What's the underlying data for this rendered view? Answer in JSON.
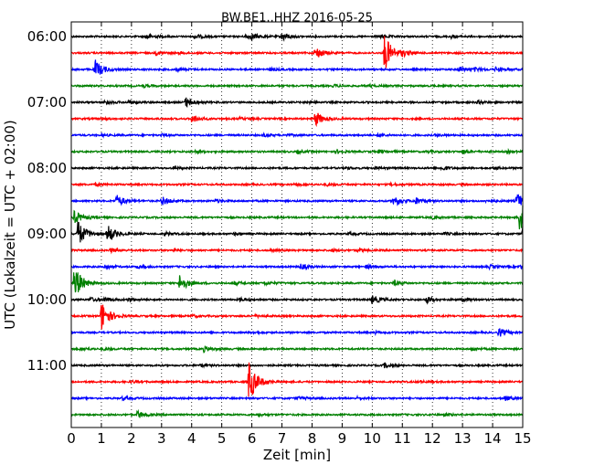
{
  "chart_data": {
    "type": "line",
    "title": "BW.BE1..HHZ 2016-05-25",
    "xlabel": "Zeit  [min]",
    "ylabel": "UTC (Lokalzeit = UTC + 02:00)",
    "xlim": [
      0,
      15
    ],
    "x_ticks": [
      "0",
      "1",
      "2",
      "3",
      "4",
      "5",
      "6",
      "7",
      "8",
      "9",
      "10",
      "11",
      "12",
      "13",
      "14",
      "15"
    ],
    "y_ticks": [
      "06:00",
      "07:00",
      "08:00",
      "09:00",
      "10:00",
      "11:00"
    ],
    "grid": "vertical dotted",
    "trace_colors": [
      "#000000",
      "#ff0000",
      "#0000ff",
      "#008000"
    ],
    "traces": [
      {
        "start": "06:00",
        "color": "#000000",
        "events": [
          [
            2.5,
            0.5
          ],
          [
            4.1,
            0.4
          ],
          [
            5.8,
            0.4
          ],
          [
            6.0,
            0.4
          ],
          [
            7.0,
            0.8
          ],
          [
            10.3,
            0.3
          ],
          [
            12.6,
            0.3
          ]
        ]
      },
      {
        "start": "06:15",
        "color": "#ff0000",
        "events": [
          [
            2.8,
            0.3
          ],
          [
            8.1,
            1.2
          ],
          [
            10.4,
            3.6
          ],
          [
            11.0,
            0.4
          ],
          [
            3.6,
            0.2
          ]
        ]
      },
      {
        "start": "06:30",
        "color": "#0000ff",
        "events": [
          [
            0.8,
            1.7
          ],
          [
            3.5,
            0.3
          ],
          [
            6.6,
            0.2
          ],
          [
            12.9,
            0.5
          ],
          [
            14.1,
            0.4
          ],
          [
            13.4,
            0.3
          ]
        ]
      },
      {
        "start": "06:45",
        "color": "#008000",
        "events": [
          [
            2.4,
            0.2
          ],
          [
            8.7,
            0.2
          ],
          [
            9.9,
            0.2
          ]
        ]
      },
      {
        "start": "07:00",
        "color": "#000000",
        "events": [
          [
            1.1,
            0.3
          ],
          [
            1.9,
            0.3
          ],
          [
            3.8,
            0.9
          ],
          [
            7.8,
            0.2
          ],
          [
            13.5,
            0.3
          ]
        ]
      },
      {
        "start": "07:15",
        "color": "#ff0000",
        "events": [
          [
            1.0,
            0.2
          ],
          [
            4.0,
            0.7
          ],
          [
            8.1,
            1.4
          ],
          [
            5.6,
            0.2
          ]
        ]
      },
      {
        "start": "07:30",
        "color": "#0000ff",
        "events": [
          [
            1.0,
            0.2
          ],
          [
            3.0,
            0.2
          ],
          [
            6.4,
            0.2
          ],
          [
            7.1,
            0.2
          ],
          [
            10.2,
            0.2
          ],
          [
            12.1,
            0.2
          ]
        ]
      },
      {
        "start": "07:45",
        "color": "#008000",
        "events": [
          [
            4.1,
            0.2
          ],
          [
            7.5,
            0.3
          ],
          [
            8.8,
            0.3
          ],
          [
            10.2,
            0.3
          ],
          [
            11.8,
            0.2
          ],
          [
            13.0,
            0.3
          ],
          [
            14.5,
            0.2
          ]
        ]
      },
      {
        "start": "08:00",
        "color": "#000000",
        "events": [
          [
            3.4,
            0.2
          ],
          [
            9.1,
            0.2
          ],
          [
            10.1,
            0.2
          ],
          [
            12.3,
            0.4
          ],
          [
            14.0,
            0.2
          ]
        ]
      },
      {
        "start": "08:15",
        "color": "#ff0000",
        "events": [
          [
            0.8,
            0.2
          ],
          [
            7.4,
            0.2
          ],
          [
            8.5,
            0.2
          ],
          [
            10.6,
            0.2
          ]
        ]
      },
      {
        "start": "08:30",
        "color": "#0000ff",
        "events": [
          [
            1.5,
            1.1
          ],
          [
            3.0,
            0.8
          ],
          [
            4.8,
            0.3
          ],
          [
            10.7,
            1.1
          ],
          [
            11.4,
            0.7
          ],
          [
            13.8,
            0.3
          ],
          [
            14.8,
            1.5
          ]
        ]
      },
      {
        "start": "08:45",
        "color": "#008000",
        "events": [
          [
            0.1,
            1.2
          ],
          [
            12.0,
            0.2
          ],
          [
            14.9,
            3.8
          ]
        ]
      },
      {
        "start": "09:00",
        "color": "#000000",
        "events": [
          [
            0.2,
            2.6
          ],
          [
            1.2,
            1.7
          ],
          [
            3.1,
            0.3
          ],
          [
            5.4,
            0.2
          ],
          [
            9.2,
            0.2
          ],
          [
            12.4,
            0.2
          ],
          [
            15.0,
            1.5
          ]
        ]
      },
      {
        "start": "09:15",
        "color": "#ff0000",
        "events": [
          [
            1.3,
            0.3
          ],
          [
            3.4,
            0.2
          ],
          [
            6.6,
            0.2
          ],
          [
            8.6,
            0.2
          ],
          [
            9.5,
            0.2
          ]
        ]
      },
      {
        "start": "09:30",
        "color": "#0000ff",
        "events": [
          [
            1.1,
            0.4
          ],
          [
            2.2,
            0.3
          ],
          [
            7.6,
            0.5
          ],
          [
            9.8,
            0.3
          ],
          [
            13.9,
            0.3
          ],
          [
            14.9,
            0.3
          ]
        ]
      },
      {
        "start": "09:45",
        "color": "#008000",
        "events": [
          [
            0.1,
            3.4
          ],
          [
            3.6,
            1.6
          ],
          [
            5.4,
            0.3
          ],
          [
            6.4,
            0.3
          ],
          [
            10.7,
            0.5
          ]
        ]
      },
      {
        "start": "10:00",
        "color": "#000000",
        "events": [
          [
            0.6,
            0.4
          ],
          [
            1.1,
            0.4
          ],
          [
            1.9,
            0.3
          ],
          [
            5.6,
            0.3
          ],
          [
            10.0,
            0.8
          ],
          [
            11.8,
            0.6
          ],
          [
            13.0,
            0.3
          ]
        ]
      },
      {
        "start": "10:15",
        "color": "#ff0000",
        "events": [
          [
            1.0,
            2.8
          ],
          [
            4.0,
            0.2
          ],
          [
            6.1,
            0.2
          ]
        ]
      },
      {
        "start": "10:30",
        "color": "#0000ff",
        "events": [
          [
            14.2,
            0.8
          ],
          [
            10.1,
            0.2
          ],
          [
            6.0,
            0.2
          ]
        ]
      },
      {
        "start": "10:45",
        "color": "#008000",
        "events": [
          [
            0.3,
            0.3
          ],
          [
            1.1,
            0.2
          ],
          [
            4.4,
            0.5
          ],
          [
            13.3,
            0.2
          ]
        ]
      },
      {
        "start": "11:00",
        "color": "#000000",
        "events": [
          [
            10.4,
            0.4
          ],
          [
            4.3,
            0.2
          ]
        ]
      },
      {
        "start": "11:15",
        "color": "#ff0000",
        "events": [
          [
            5.9,
            4.0
          ],
          [
            2.0,
            0.2
          ],
          [
            11.5,
            0.2
          ]
        ]
      },
      {
        "start": "11:30",
        "color": "#0000ff",
        "events": [
          [
            1.7,
            0.3
          ],
          [
            7.5,
            0.3
          ],
          [
            9.5,
            0.2
          ],
          [
            14.4,
            0.4
          ]
        ]
      },
      {
        "start": "11:45",
        "color": "#008000",
        "events": [
          [
            2.2,
            0.7
          ],
          [
            6.2,
            0.2
          ],
          [
            12.4,
            0.2
          ]
        ]
      }
    ]
  }
}
